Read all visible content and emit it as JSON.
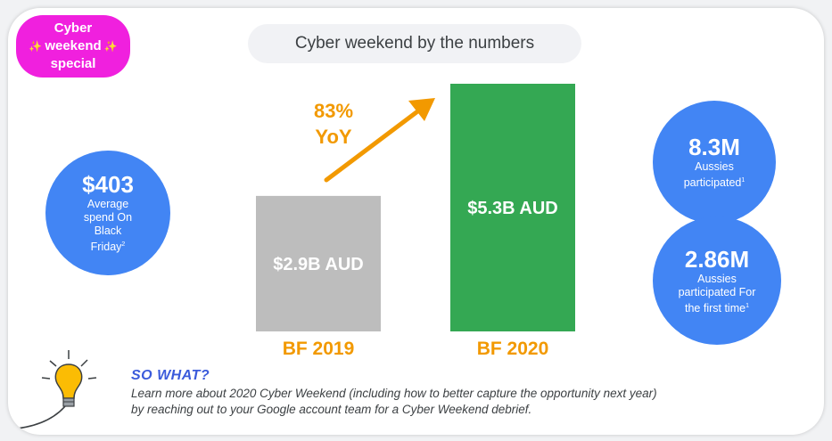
{
  "badge": {
    "line1": "Cyber",
    "line2": "weekend",
    "line3": "special",
    "spark": "✨"
  },
  "header": {
    "title": "Cyber weekend by the numbers"
  },
  "stats": {
    "left": {
      "value": "$403",
      "desc": "Average spend On Black Friday",
      "sup": "2"
    },
    "right_top": {
      "value": "8.3M",
      "desc": "Aussies participated",
      "sup": "1"
    },
    "right_bottom": {
      "value": "2.86M",
      "desc": "Aussies participated For the first time",
      "sup": "1"
    }
  },
  "chart_data": {
    "type": "bar",
    "categories": [
      "BF 2019",
      "BF 2020"
    ],
    "values": [
      2.9,
      5.3
    ],
    "value_labels": [
      "$2.9B AUD",
      "$5.3B AUD"
    ],
    "ylim": [
      0,
      5.3
    ],
    "annotation": {
      "line1": "83%",
      "line2": "YoY"
    },
    "colors": {
      "bar_2019": "#bdbdbd",
      "bar_2020": "#34a853",
      "labels": "#f29900",
      "arrow": "#f29900"
    }
  },
  "so_what": {
    "heading": "SO WHAT?",
    "body_line1": "Learn more about 2020 Cyber Weekend (including how to better capture the opportunity next year)",
    "body_line2": "by reaching out to your Google account team for a Cyber Weekend debrief."
  },
  "colors": {
    "accent_blue": "#4285f4",
    "badge_pink": "#f020de"
  }
}
